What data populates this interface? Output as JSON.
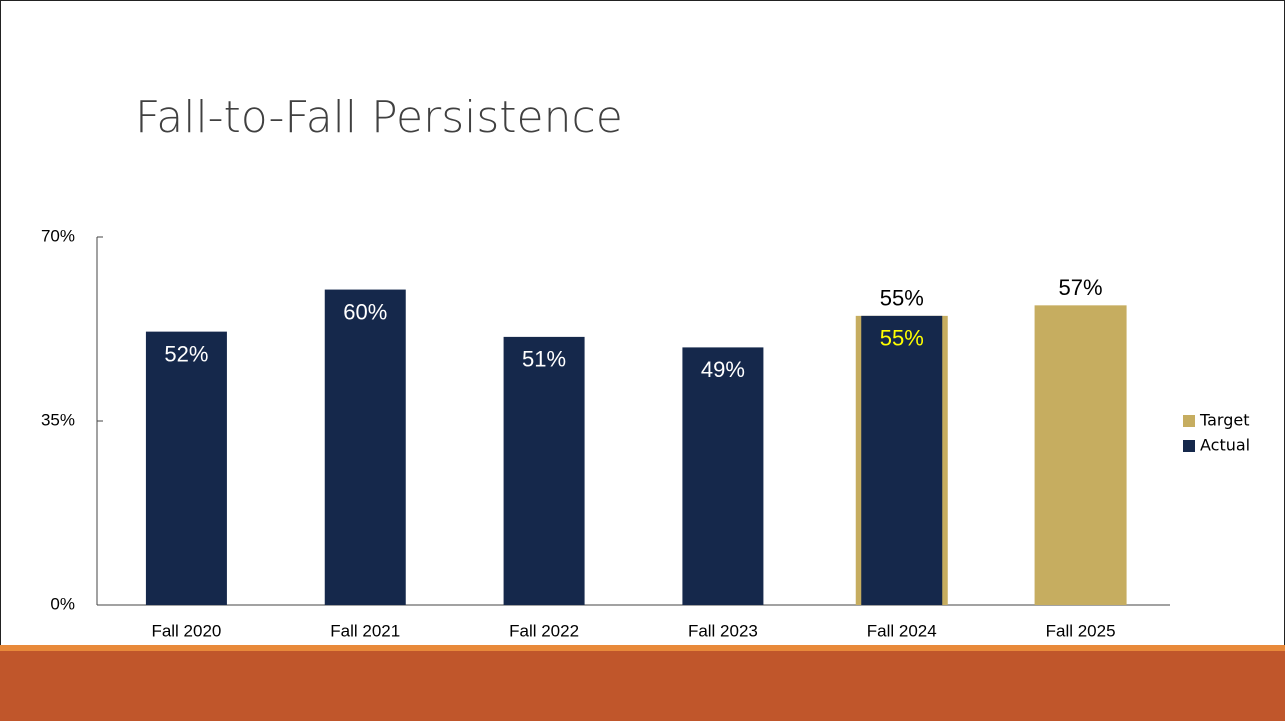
{
  "chart_data": {
    "type": "bar",
    "title": "Fall-to-Fall Persistence",
    "categories": [
      "Fall 2020",
      "Fall 2021",
      "Fall 2022",
      "Fall 2023",
      "Fall 2024",
      "Fall 2025"
    ],
    "series": [
      {
        "name": "Target",
        "color": "#c6ad60",
        "values": [
          null,
          null,
          null,
          null,
          55,
          57
        ],
        "value_labels": [
          null,
          null,
          null,
          null,
          "55%",
          "57%"
        ],
        "label_colors": [
          null,
          null,
          null,
          null,
          "#000000",
          "#000000"
        ],
        "label_position": "above"
      },
      {
        "name": "Actual",
        "color": "#15284b",
        "values": [
          52,
          60,
          51,
          49,
          55,
          null
        ],
        "value_labels": [
          "52%",
          "60%",
          "51%",
          "49%",
          "55%",
          null
        ],
        "label_colors": [
          "#ffffff",
          "#ffffff",
          "#ffffff",
          "#ffffff",
          "#ffff00",
          null
        ],
        "label_position": "inside"
      }
    ],
    "ylim": [
      0,
      70
    ],
    "yticks": [
      {
        "value": 0,
        "label": "0%"
      },
      {
        "value": 35,
        "label": "35%"
      },
      {
        "value": 70,
        "label": "70%"
      }
    ],
    "legend": "right"
  }
}
